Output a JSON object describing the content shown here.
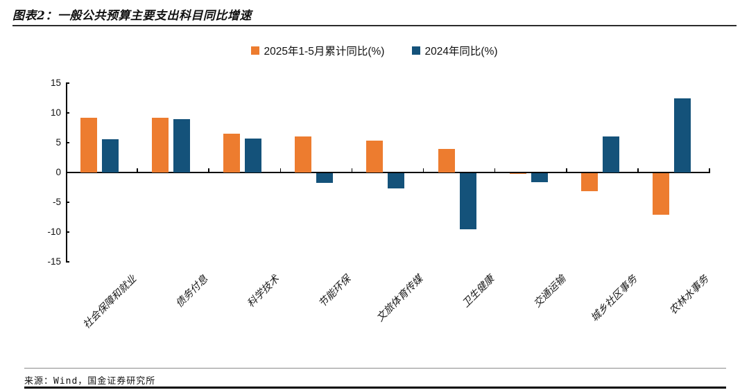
{
  "header": {
    "title": "图表2：一般公共预算主要支出科目同比增速"
  },
  "chart_data": {
    "type": "bar",
    "title": "一般公共预算主要支出科目同比增速",
    "categories": [
      "社会保障和就业",
      "债务付息",
      "科学技术",
      "节能环保",
      "文旅体育传媒",
      "卫生健康",
      "交通运输",
      "城乡社区事务",
      "农林水事务"
    ],
    "series": [
      {
        "name": "2025年1-5月累计同比(%)",
        "color": "#ED7C2F",
        "values": [
          9.2,
          9.2,
          6.5,
          6.0,
          5.4,
          3.9,
          -0.2,
          -3.1,
          -7.0
        ]
      },
      {
        "name": "2024年同比(%)",
        "color": "#14527A",
        "values": [
          5.6,
          8.9,
          5.7,
          -1.6,
          -2.6,
          -9.4,
          -1.5,
          6.0,
          12.5
        ]
      }
    ],
    "xlabel": "",
    "ylabel": "",
    "ylim": [
      -15,
      15
    ],
    "yticks": [
      15,
      10,
      5,
      0,
      -5,
      -10,
      -15
    ],
    "grid": false,
    "legend_position": "top-center"
  },
  "footer": {
    "source": "来源：Wind，国金证券研究所"
  }
}
